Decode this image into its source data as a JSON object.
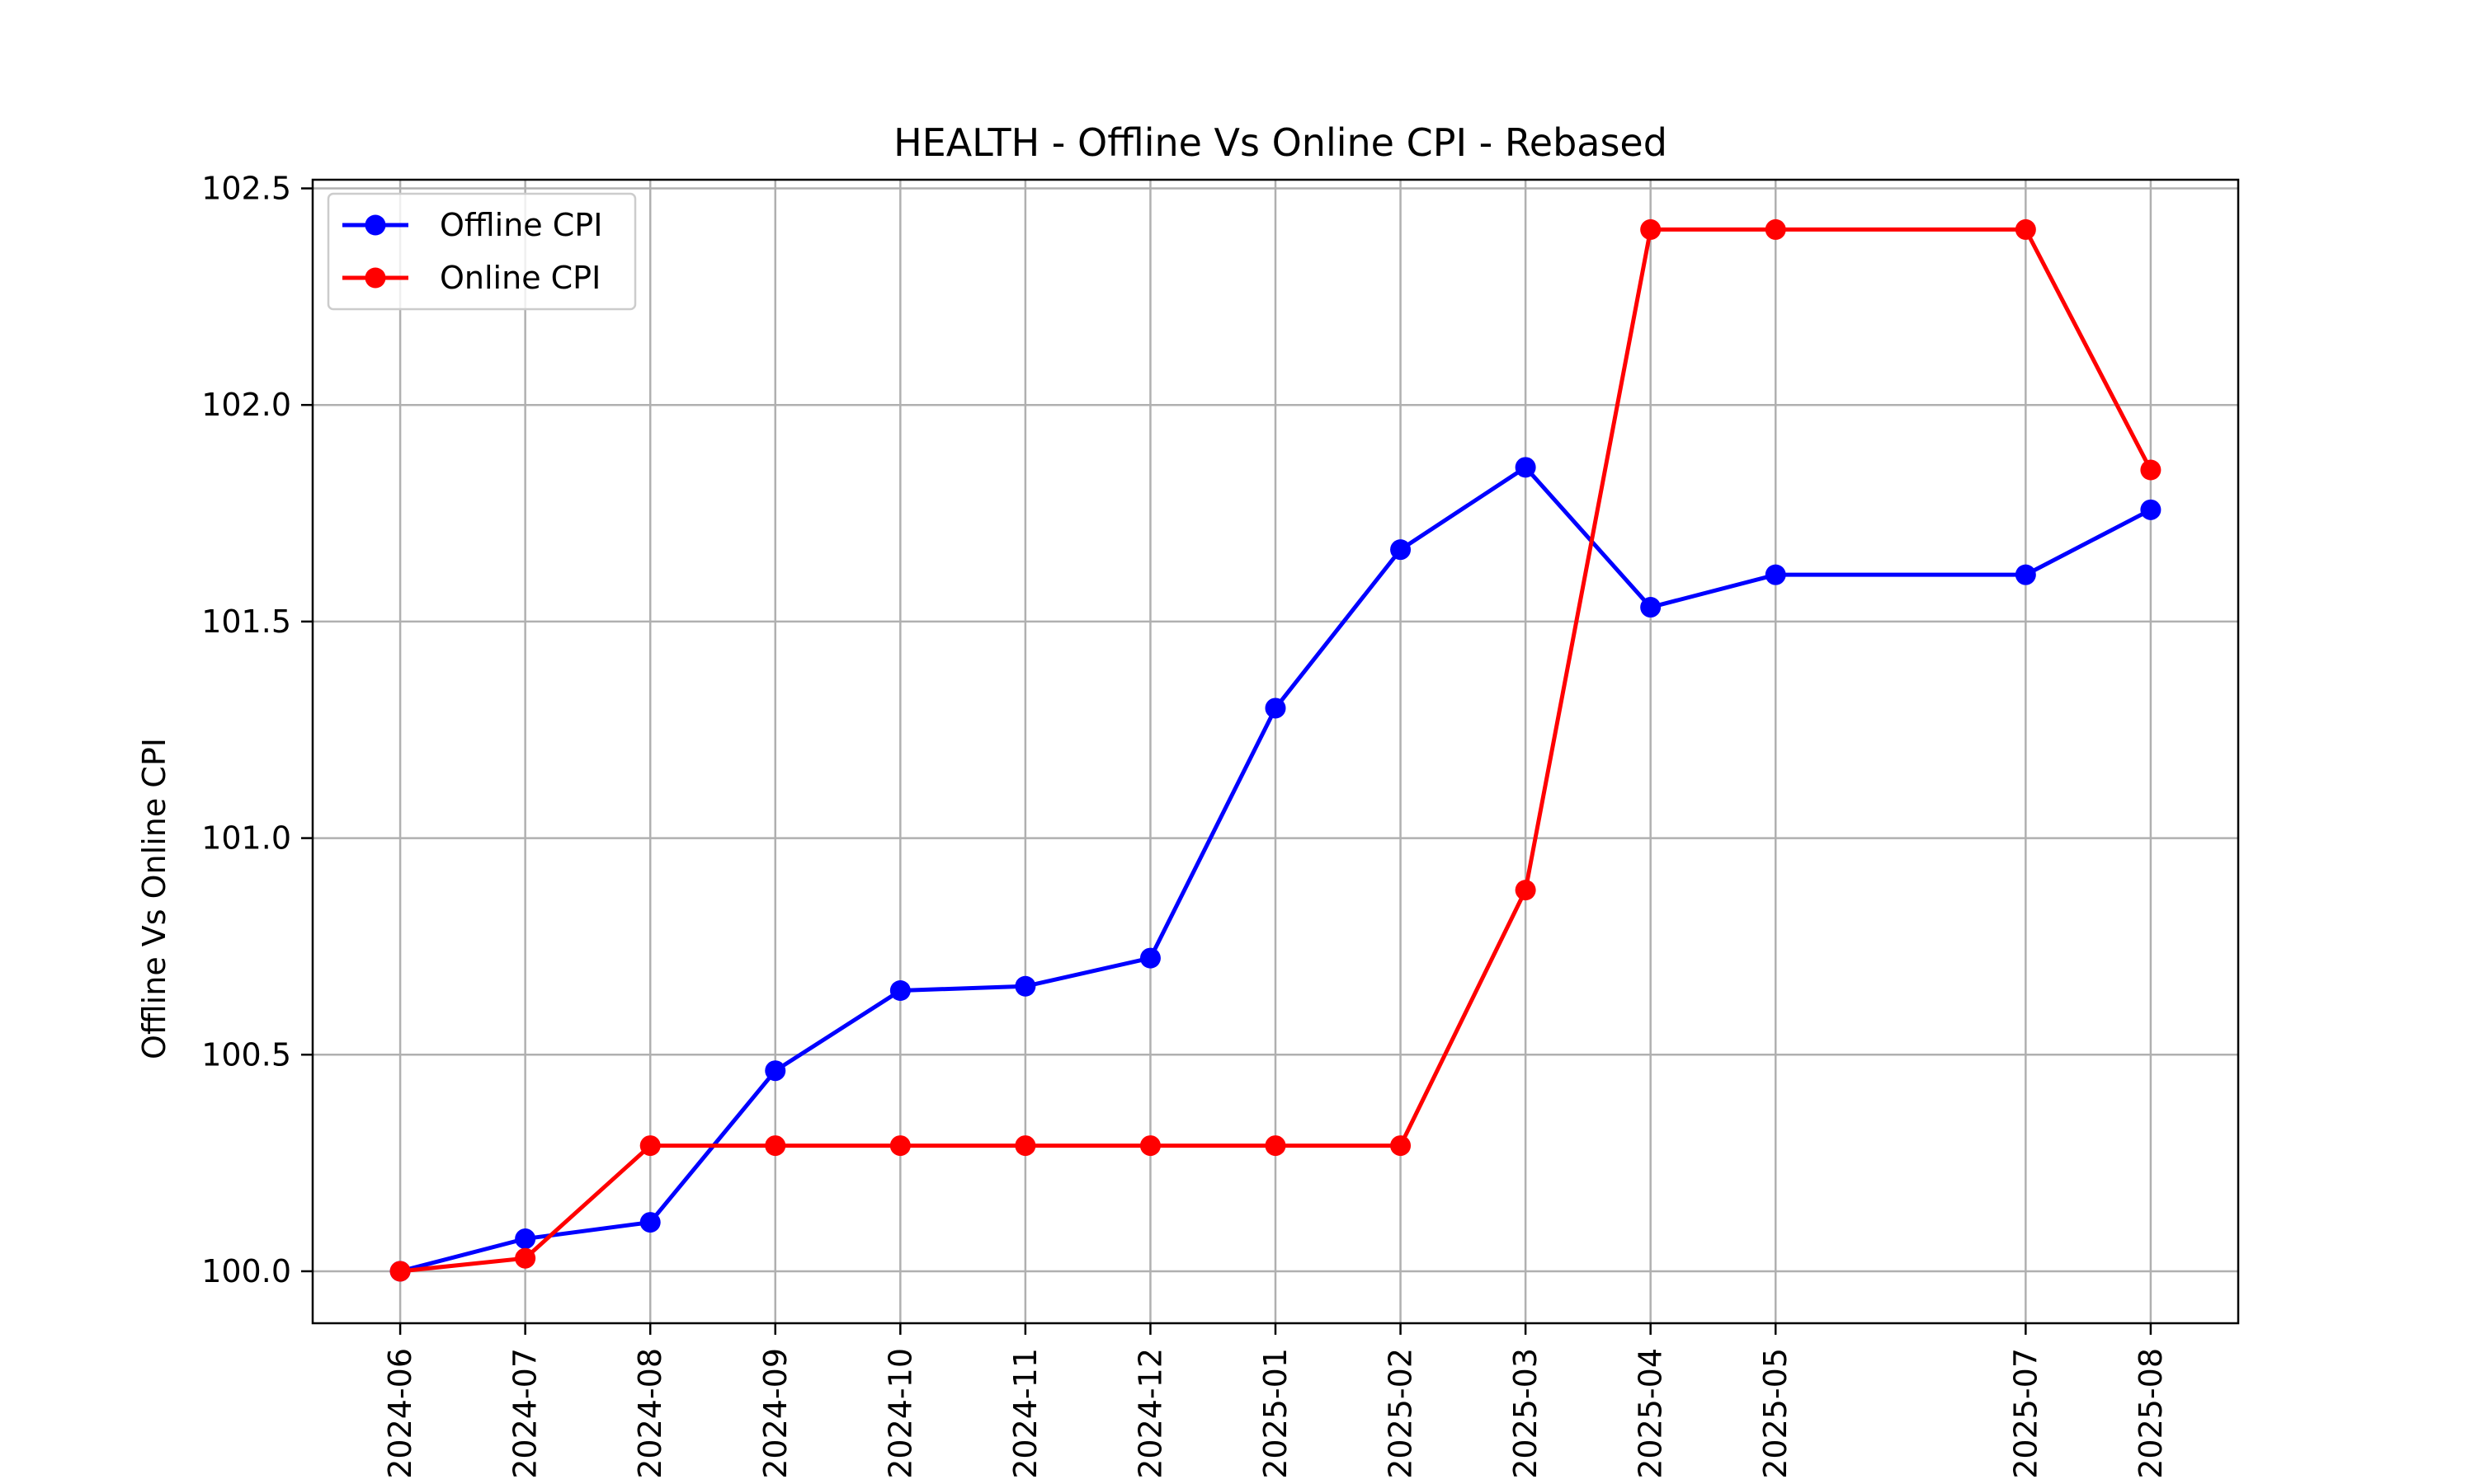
{
  "chart_data": {
    "type": "line",
    "title": "HEALTH - Offline Vs Online CPI - Rebased",
    "xlabel": "",
    "ylabel": "Offline Vs Online CPI",
    "x": [
      "2024-06",
      "2024-07",
      "2024-08",
      "2024-09",
      "2024-10",
      "2024-11",
      "2024-12",
      "2025-01",
      "2025-02",
      "2025-03",
      "2025-04",
      "2025-05",
      "2025-07",
      "2025-08"
    ],
    "x_positions_months": [
      0,
      1,
      2,
      3,
      4,
      5,
      6,
      7,
      8,
      9,
      10,
      11,
      13,
      14
    ],
    "yticks": [
      "100.0",
      "100.5",
      "101.0",
      "101.5",
      "102.0",
      "102.5"
    ],
    "ylim": [
      99.88,
      102.52
    ],
    "grid": true,
    "legend": "top-left",
    "series": [
      {
        "name": "Offline CPI",
        "color": "#0000ff",
        "marker": "circle",
        "values": [
          100.0,
          100.075,
          100.113,
          100.463,
          100.648,
          100.658,
          100.723,
          101.3,
          101.666,
          101.856,
          101.533,
          101.608,
          101.608,
          101.758
        ]
      },
      {
        "name": "Online CPI",
        "color": "#ff0000",
        "marker": "circle",
        "values": [
          100.0,
          100.03,
          100.29,
          100.29,
          100.29,
          100.29,
          100.29,
          100.29,
          100.29,
          100.88,
          102.405,
          102.405,
          102.405,
          101.85
        ]
      }
    ]
  }
}
